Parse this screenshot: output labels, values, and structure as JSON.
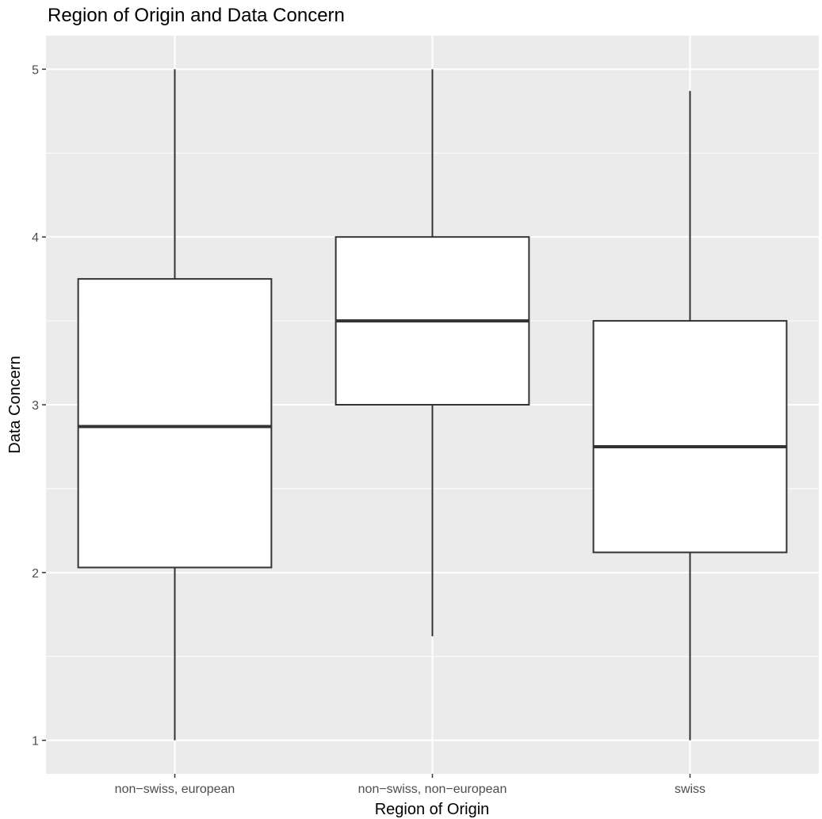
{
  "chart_data": {
    "type": "boxplot",
    "title": "Region of Origin and Data Concern",
    "xlabel": "Region of Origin",
    "ylabel": "Data Concern",
    "categories": [
      "non−swiss, european",
      "non−swiss, non−european",
      "swiss"
    ],
    "boxes": [
      {
        "category": "non−swiss, european",
        "whisker_low": 1.0,
        "q1": 2.03,
        "median": 2.87,
        "q3": 3.75,
        "whisker_high": 5.0
      },
      {
        "category": "non−swiss, non−european",
        "whisker_low": 1.62,
        "q1": 3.0,
        "median": 3.5,
        "q3": 4.0,
        "whisker_high": 5.0
      },
      {
        "category": "swiss",
        "whisker_low": 1.0,
        "q1": 2.12,
        "median": 2.75,
        "q3": 3.5,
        "whisker_high": 4.87
      }
    ],
    "ylim": [
      0.8,
      5.2
    ],
    "y_ticks": [
      1,
      2,
      3,
      4,
      5
    ],
    "grid": true,
    "colors": {
      "panel": "#ebebeb",
      "grid": "#ffffff",
      "box_fill": "#ffffff",
      "box_stroke": "#333333",
      "tick_text": "#4d4d4d"
    }
  }
}
